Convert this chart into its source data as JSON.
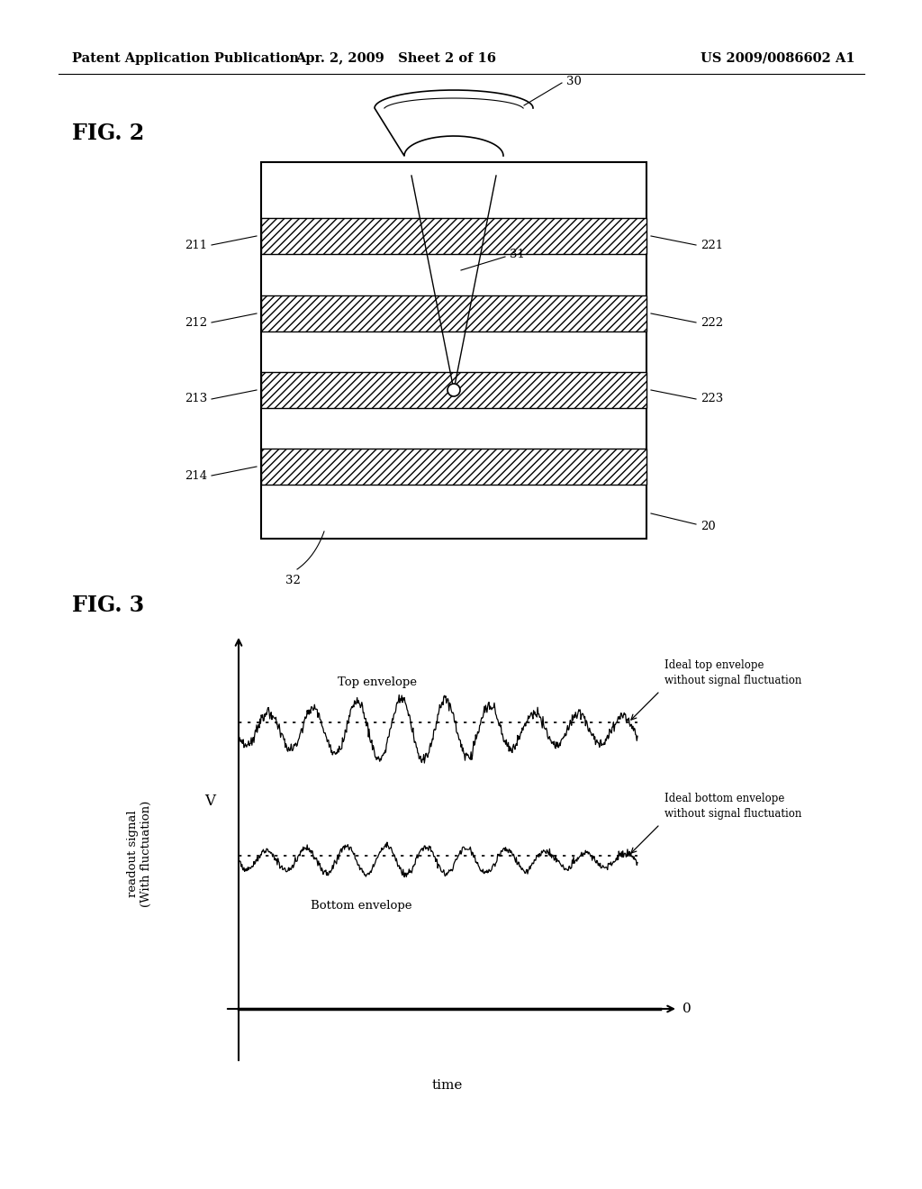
{
  "header_left": "Patent Application Publication",
  "header_center": "Apr. 2, 2009   Sheet 2 of 16",
  "header_right": "US 2009/0086602 A1",
  "fig2_label": "FIG. 2",
  "fig3_label": "FIG. 3",
  "background_color": "#ffffff",
  "text_color": "#000000",
  "label_20": "20",
  "label_30": "30",
  "label_31": "31",
  "label_32": "32",
  "left_labels": [
    "211",
    "212",
    "213",
    "214"
  ],
  "right_labels": [
    "221",
    "222",
    "223"
  ],
  "ylabel_fig3": "readout signal\n(With fluctuation)",
  "xlabel_fig3": "time",
  "v_label": "V",
  "zero_label": "0",
  "top_env_label": "Top envelope",
  "bottom_env_label": "Bottom envelope",
  "ideal_top_label": "Ideal top envelope\nwithout signal fluctuation",
  "ideal_bottom_label": "Ideal bottom envelope\nwithout signal fluctuation"
}
